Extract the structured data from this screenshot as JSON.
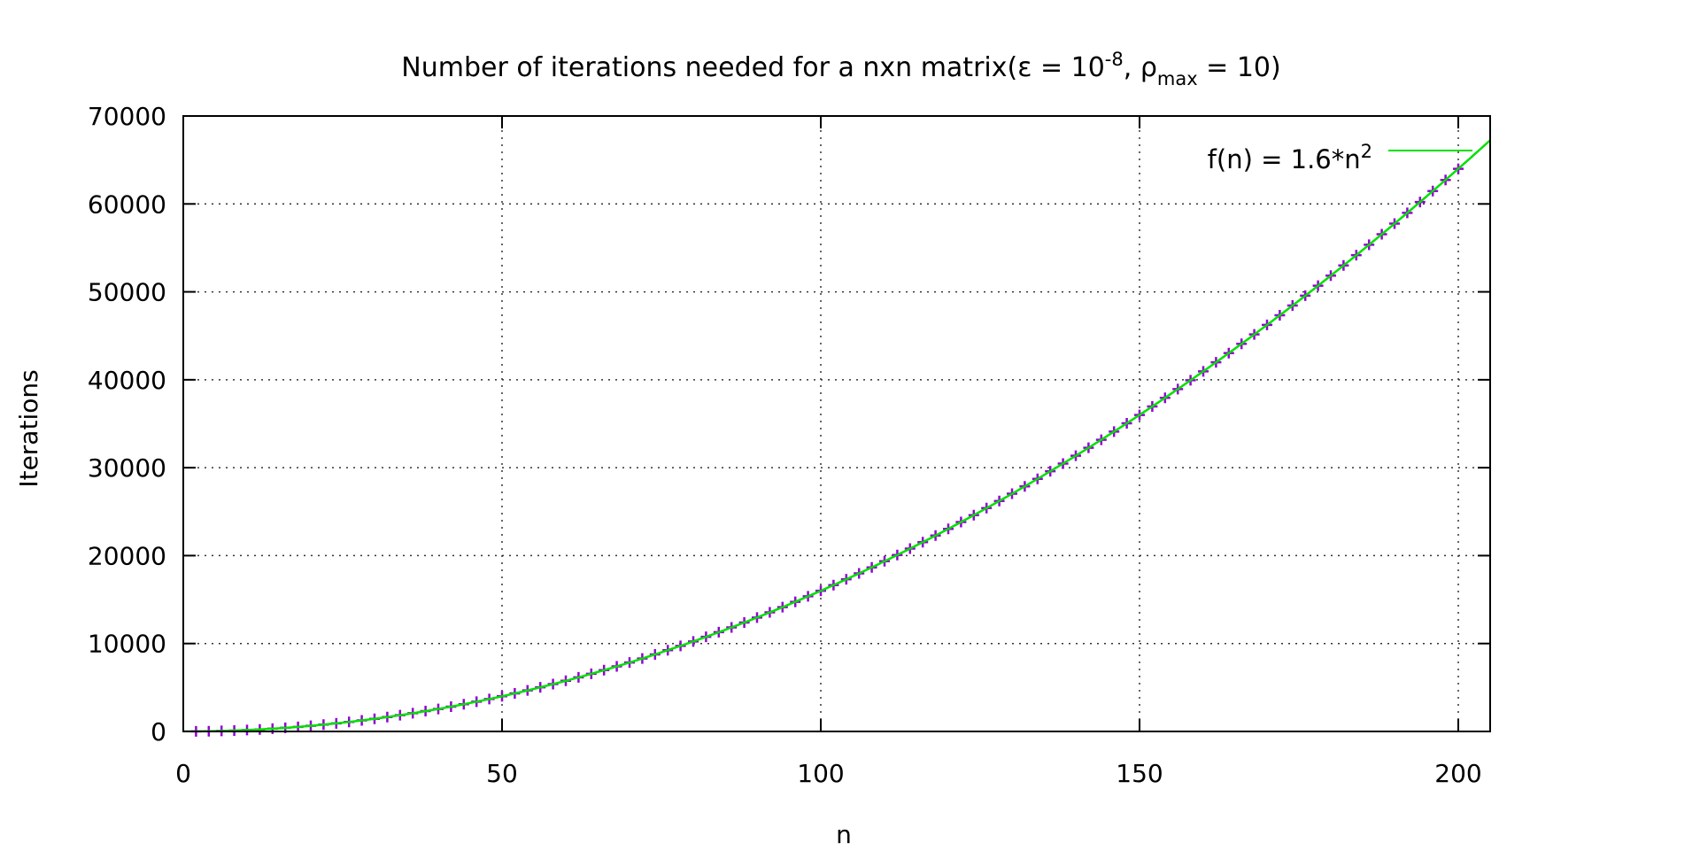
{
  "chart_data": {
    "type": "line",
    "title": {
      "prefix": "Number of iterations needed for a nxn matrix(ε = 10",
      "exp1": "-8",
      "mid": ", ρ",
      "sub": "max",
      "suffix": " = 10)"
    },
    "xlabel": "n",
    "ylabel": "Iterations",
    "xlim": [
      0,
      205
    ],
    "ylim": [
      0,
      70000
    ],
    "x_ticks": [
      0,
      50,
      100,
      150,
      200
    ],
    "y_ticks": [
      0,
      10000,
      20000,
      30000,
      40000,
      50000,
      60000,
      70000
    ],
    "grid": true,
    "legend_position": "top-right",
    "series": [
      {
        "name": "",
        "kind": "points",
        "marker": "plus",
        "color": "#9400d3",
        "x_start": 2,
        "x_end": 200,
        "x_step": 2,
        "coefficient": 1.6,
        "exponent": 2,
        "values_note": "y = 1.6 * x^2 at each x"
      },
      {
        "name": "f(n) = 1.6*n",
        "name_sup": "2",
        "kind": "line",
        "color": "#00e000",
        "coefficient": 1.6,
        "exponent": 2
      }
    ]
  }
}
